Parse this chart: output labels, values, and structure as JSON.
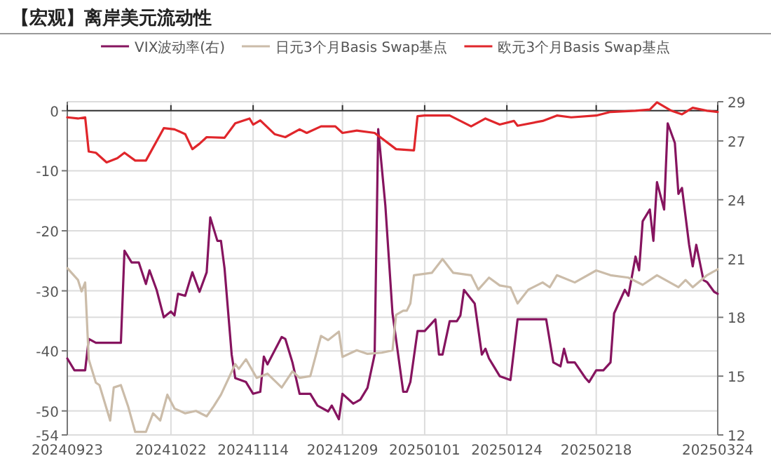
{
  "chart_data": {
    "type": "line",
    "title": "【宏观】离岸美元流动性",
    "legend": "top",
    "grid": true,
    "line_style": "solid",
    "xlim": [
      "2024-09-23",
      "2025-03-24"
    ],
    "xticks": [
      {
        "value": "2024-09-23",
        "label": "20240923"
      },
      {
        "value": "2024-10-22",
        "label": "20241022"
      },
      {
        "value": "2024-11-14",
        "label": "20241114"
      },
      {
        "value": "2024-12-09",
        "label": "20241209"
      },
      {
        "value": "2025-01-01",
        "label": "20250101"
      },
      {
        "value": "2025-01-24",
        "label": "20250124"
      },
      {
        "value": "2025-02-18",
        "label": "20250218"
      },
      {
        "value": "2025-03-24",
        "label": "20250324"
      }
    ],
    "ylim": [
      -54,
      1.5
    ],
    "yticks": [
      -54,
      -50,
      -40,
      -30,
      -20,
      -10,
      0
    ],
    "y2lim": [
      12,
      29
    ],
    "y2ticks": [
      12,
      15,
      18,
      21,
      24,
      27,
      29
    ],
    "series": [
      {
        "name": "VIX波动率(右)",
        "color": "#86145f",
        "axis": "y2",
        "x": [
          "2024-09-23",
          "2024-09-25",
          "2024-09-28",
          "2024-09-29",
          "2024-10-01",
          "2024-10-08",
          "2024-10-09",
          "2024-10-11",
          "2024-10-13",
          "2024-10-15",
          "2024-10-16",
          "2024-10-18",
          "2024-10-20",
          "2024-10-22",
          "2024-10-23",
          "2024-10-24",
          "2024-10-26",
          "2024-10-28",
          "2024-10-30",
          "2024-11-01",
          "2024-11-02",
          "2024-11-04",
          "2024-11-05",
          "2024-11-06",
          "2024-11-08",
          "2024-11-09",
          "2024-11-12",
          "2024-11-14",
          "2024-11-16",
          "2024-11-17",
          "2024-11-18",
          "2024-11-22",
          "2024-11-23",
          "2024-11-25",
          "2024-11-27",
          "2024-11-30",
          "2024-12-02",
          "2024-12-05",
          "2024-12-06",
          "2024-12-08",
          "2024-12-09",
          "2024-12-12",
          "2024-12-14",
          "2024-12-16",
          "2024-12-18",
          "2024-12-19",
          "2024-12-21",
          "2024-12-23",
          "2024-12-26",
          "2024-12-27",
          "2024-12-28",
          "2024-12-30",
          "2025-01-01",
          "2025-01-04",
          "2025-01-05",
          "2025-01-06",
          "2025-01-08",
          "2025-01-10",
          "2025-01-11",
          "2025-01-12",
          "2025-01-15",
          "2025-01-17",
          "2025-01-18",
          "2025-01-19",
          "2025-01-20",
          "2025-01-22",
          "2025-01-25",
          "2025-01-27",
          "2025-02-04",
          "2025-02-06",
          "2025-02-08",
          "2025-02-09",
          "2025-02-10",
          "2025-02-12",
          "2025-02-15",
          "2025-02-16",
          "2025-02-18",
          "2025-02-20",
          "2025-02-22",
          "2025-02-23",
          "2025-02-26",
          "2025-02-27",
          "2025-03-01",
          "2025-03-02",
          "2025-03-03",
          "2025-03-05",
          "2025-03-06",
          "2025-03-07",
          "2025-03-09",
          "2025-03-10",
          "2025-03-12",
          "2025-03-13",
          "2025-03-14",
          "2025-03-16",
          "2025-03-17",
          "2025-03-18",
          "2025-03-20",
          "2025-03-21",
          "2025-03-23",
          "2025-03-24"
        ],
        "values": [
          15.9,
          15.3,
          15.3,
          16.9,
          16.7,
          16.7,
          21.4,
          20.8,
          20.8,
          19.7,
          20.4,
          19.4,
          18,
          18.3,
          18.1,
          19.2,
          19.1,
          20.3,
          19.3,
          20.3,
          23.1,
          21.9,
          21.9,
          20.5,
          16.1,
          14.9,
          14.7,
          14.1,
          14.2,
          16,
          15.6,
          17,
          16.9,
          15.7,
          14.1,
          14.1,
          13.5,
          13.2,
          13.5,
          12.8,
          14.1,
          13.6,
          13.8,
          14.4,
          16.1,
          27.6,
          23.7,
          18.2,
          14.2,
          14.2,
          14.7,
          17.3,
          17.3,
          17.9,
          16.1,
          16.1,
          17.8,
          17.8,
          18.1,
          19.4,
          18.7,
          16.1,
          16.4,
          15.9,
          15.6,
          15,
          14.8,
          17.9,
          17.9,
          15.7,
          15.5,
          16.4,
          15.7,
          15.7,
          14.9,
          14.7,
          15.3,
          15.3,
          15.7,
          18.2,
          19.4,
          19.1,
          21.1,
          20.4,
          22.9,
          23.5,
          21.9,
          24.9,
          23.5,
          27.9,
          26.9,
          24.3,
          24.6,
          21.7,
          20.6,
          21.7,
          19.9,
          19.8,
          19.3,
          19.2
        ]
      },
      {
        "name": "日元3个月Basis Swap基点",
        "color": "#cbbca9",
        "x": [
          "2024-09-23",
          "2024-09-26",
          "2024-09-27",
          "2024-09-28",
          "2024-09-29",
          "2024-10-01",
          "2024-10-02",
          "2024-10-05",
          "2024-10-06",
          "2024-10-08",
          "2024-10-10",
          "2024-10-12",
          "2024-10-15",
          "2024-10-17",
          "2024-10-19",
          "2024-10-21",
          "2024-10-23",
          "2024-10-26",
          "2024-10-29",
          "2024-11-01",
          "2024-11-03",
          "2024-11-05",
          "2024-11-09",
          "2024-11-10",
          "2024-11-12",
          "2024-11-15",
          "2024-11-18",
          "2024-11-22",
          "2024-11-25",
          "2024-11-27",
          "2024-11-30",
          "2024-12-03",
          "2024-12-05",
          "2024-12-08",
          "2024-12-09",
          "2024-12-13",
          "2024-12-16",
          "2024-12-20",
          "2024-12-23",
          "2024-12-24",
          "2024-12-26",
          "2024-12-27",
          "2024-12-28",
          "2024-12-29",
          "2025-01-03",
          "2025-01-06",
          "2025-01-09",
          "2025-01-14",
          "2025-01-16",
          "2025-01-19",
          "2025-01-22",
          "2025-01-25",
          "2025-01-27",
          "2025-01-30",
          "2025-02-03",
          "2025-02-05",
          "2025-02-07",
          "2025-02-12",
          "2025-02-18",
          "2025-02-22",
          "2025-02-27",
          "2025-03-03",
          "2025-03-07",
          "2025-03-13",
          "2025-03-15",
          "2025-03-17",
          "2025-03-21",
          "2025-03-24"
        ],
        "values": [
          -26.2,
          -28.2,
          -30.1,
          -28.6,
          -41.4,
          -45.3,
          -45.7,
          -51.6,
          -46.1,
          -45.7,
          -49.2,
          -53.5,
          -53.5,
          -50.4,
          -51.6,
          -47.3,
          -49.6,
          -50.4,
          -50,
          -50.9,
          -49.2,
          -47.3,
          -42.2,
          -43,
          -41.4,
          -44.5,
          -43.8,
          -46.1,
          -43.4,
          -44.5,
          -44.2,
          -37.5,
          -38.2,
          -36.8,
          -41,
          -39.9,
          -40.5,
          -40.3,
          -39.9,
          -34,
          -33.3,
          -33.3,
          -32.1,
          -27.4,
          -27,
          -24.7,
          -27,
          -27.4,
          -29.8,
          -27.8,
          -29.1,
          -29.4,
          -32.1,
          -29.8,
          -28.6,
          -29.4,
          -27.4,
          -28.6,
          -26.6,
          -27.4,
          -27.8,
          -29,
          -27.4,
          -29.4,
          -28.2,
          -29.4,
          -27.4,
          -26.4
        ]
      },
      {
        "name": "欧元3个月Basis Swap基点",
        "color": "#e0262b",
        "x": [
          "2024-09-23",
          "2024-09-26",
          "2024-09-28",
          "2024-09-29",
          "2024-10-01",
          "2024-10-04",
          "2024-10-07",
          "2024-10-09",
          "2024-10-12",
          "2024-10-15",
          "2024-10-20",
          "2024-10-23",
          "2024-10-26",
          "2024-10-28",
          "2024-10-30",
          "2024-11-01",
          "2024-11-06",
          "2024-11-09",
          "2024-11-13",
          "2024-11-14",
          "2024-11-16",
          "2024-11-20",
          "2024-11-23",
          "2024-11-27",
          "2024-11-29",
          "2024-12-03",
          "2024-12-07",
          "2024-12-09",
          "2024-12-13",
          "2024-12-18",
          "2024-12-22",
          "2024-12-24",
          "2024-12-29",
          "2024-12-30",
          "2025-01-01",
          "2025-01-08",
          "2025-01-11",
          "2025-01-14",
          "2025-01-18",
          "2025-01-22",
          "2025-01-26",
          "2025-01-27",
          "2025-02-03",
          "2025-02-07",
          "2025-02-11",
          "2025-02-18",
          "2025-02-22",
          "2025-03-01",
          "2025-03-05",
          "2025-03-07",
          "2025-03-11",
          "2025-03-14",
          "2025-03-17",
          "2025-03-21",
          "2025-03-24"
        ],
        "values": [
          -1.1,
          -1.3,
          -1.1,
          -6.8,
          -7,
          -8.6,
          -7.9,
          -7,
          -8.3,
          -8.3,
          -2.9,
          -3.1,
          -3.9,
          -6.4,
          -5.5,
          -4.4,
          -4.5,
          -2.1,
          -1.3,
          -2.3,
          -1.6,
          -3.9,
          -4.4,
          -3.1,
          -3.7,
          -2.6,
          -2.6,
          -3.7,
          -3.3,
          -3.7,
          -5.5,
          -6.4,
          -6.6,
          -0.9,
          -0.8,
          -0.8,
          -1.7,
          -2.6,
          -1.3,
          -2.3,
          -1.7,
          -2.5,
          -1.7,
          -0.8,
          -1.1,
          -0.8,
          -0.2,
          0,
          0.2,
          1.4,
          0,
          -0.6,
          0.5,
          0,
          -0.2
        ]
      }
    ]
  }
}
